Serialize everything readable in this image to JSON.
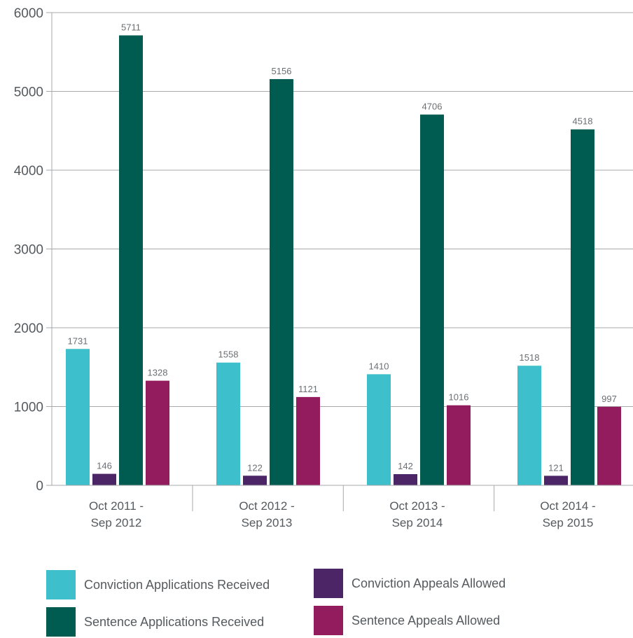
{
  "chart_data": {
    "type": "bar",
    "categories": [
      [
        "Oct 2011 -",
        "Sep 2012"
      ],
      [
        "Oct 2012 -",
        "Sep 2013"
      ],
      [
        "Oct 2013 -",
        "Sep 2014"
      ],
      [
        "Oct 2014 -",
        "Sep 2015"
      ]
    ],
    "series": [
      {
        "name": "Conviction Applications Received",
        "color": "#3ec0cc",
        "values": [
          1731,
          1558,
          1410,
          1518
        ]
      },
      {
        "name": "Conviction Appeals Allowed",
        "color": "#4b2566",
        "values": [
          146,
          122,
          142,
          121
        ]
      },
      {
        "name": "Sentence Applications Received",
        "color": "#005c50",
        "values": [
          5711,
          5156,
          4706,
          4518
        ]
      },
      {
        "name": "Sentence Appeals Allowed",
        "color": "#931c5e",
        "values": [
          1328,
          1121,
          1016,
          997
        ]
      }
    ],
    "yticks": [
      0,
      1000,
      2000,
      3000,
      4000,
      5000,
      6000
    ],
    "ylim": [
      0,
      6000
    ],
    "title": "",
    "xlabel": "",
    "ylabel": "",
    "grid": true,
    "legend_position": "bottom"
  }
}
